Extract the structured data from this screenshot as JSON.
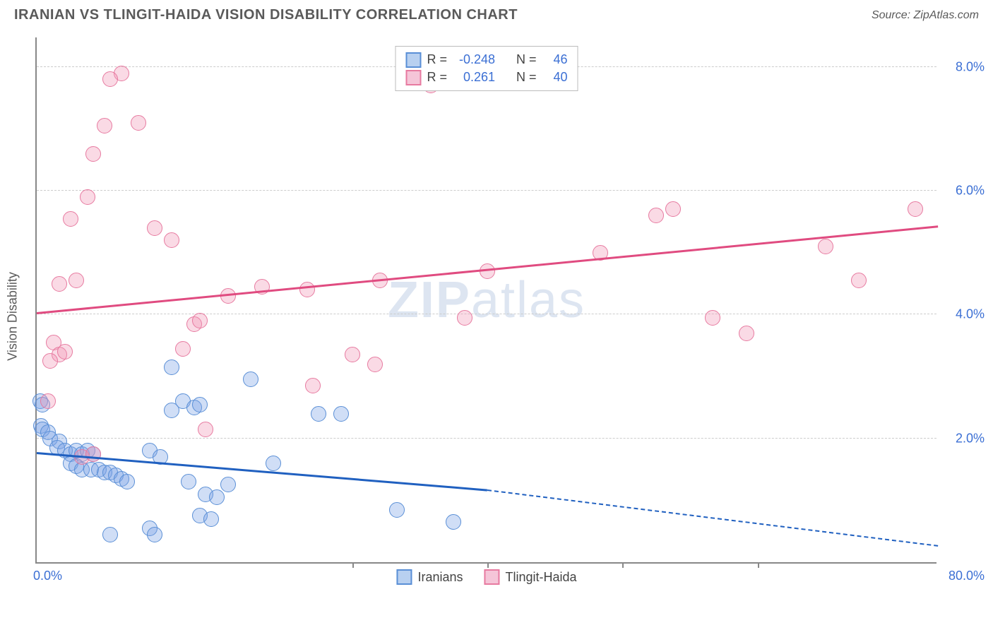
{
  "title": "IRANIAN VS TLINGIT-HAIDA VISION DISABILITY CORRELATION CHART",
  "source": "Source: ZipAtlas.com",
  "watermark_bold": "ZIP",
  "watermark_light": "atlas",
  "ylabel": "Vision Disability",
  "chart": {
    "type": "scatter",
    "xlim": [
      0,
      80
    ],
    "ylim": [
      0,
      8.5
    ],
    "xtick_labels": [
      "0.0%",
      "80.0%"
    ],
    "ytick_values": [
      2.0,
      4.0,
      6.0,
      8.0
    ],
    "ytick_labels": [
      "2.0%",
      "4.0%",
      "6.0%",
      "8.0%"
    ],
    "xtick_marks": [
      28,
      40,
      52,
      64
    ],
    "background_color": "#ffffff",
    "grid_color": "#cccccc",
    "axis_color": "#888888",
    "marker_radius": 11,
    "marker_stroke_width": 1.5,
    "series": [
      {
        "name": "Iranians",
        "color_fill": "rgba(120,160,230,0.35)",
        "color_stroke": "#5a8fd6",
        "swatch_fill": "#b8d0f0",
        "swatch_stroke": "#5a8fd6",
        "R": "-0.248",
        "N": "46",
        "trend": {
          "x0": 0,
          "y0": 1.75,
          "x1": 40,
          "y1": 1.15,
          "x1_dash": 80,
          "y1_dash": 0.25,
          "color": "#2060c0"
        },
        "points": [
          [
            0.3,
            2.6
          ],
          [
            0.5,
            2.55
          ],
          [
            0.4,
            2.2
          ],
          [
            0.5,
            2.15
          ],
          [
            1.0,
            2.1
          ],
          [
            1.2,
            2.0
          ],
          [
            2.0,
            1.95
          ],
          [
            1.8,
            1.85
          ],
          [
            2.5,
            1.8
          ],
          [
            3.0,
            1.75
          ],
          [
            3.5,
            1.8
          ],
          [
            4.0,
            1.75
          ],
          [
            4.5,
            1.8
          ],
          [
            5.0,
            1.75
          ],
          [
            3.0,
            1.6
          ],
          [
            3.5,
            1.55
          ],
          [
            4.0,
            1.5
          ],
          [
            4.8,
            1.5
          ],
          [
            5.5,
            1.5
          ],
          [
            6.0,
            1.45
          ],
          [
            6.5,
            1.45
          ],
          [
            7.0,
            1.4
          ],
          [
            7.5,
            1.35
          ],
          [
            8.0,
            1.3
          ],
          [
            10.0,
            1.8
          ],
          [
            11.0,
            1.7
          ],
          [
            12.0,
            2.45
          ],
          [
            13.0,
            2.6
          ],
          [
            14.0,
            2.5
          ],
          [
            13.5,
            1.3
          ],
          [
            15.0,
            1.1
          ],
          [
            16.0,
            1.05
          ],
          [
            14.5,
            0.75
          ],
          [
            15.5,
            0.7
          ],
          [
            17.0,
            1.25
          ],
          [
            21.0,
            1.6
          ],
          [
            25.0,
            2.4
          ],
          [
            27.0,
            2.4
          ],
          [
            32.0,
            0.85
          ],
          [
            37.0,
            0.65
          ],
          [
            6.5,
            0.45
          ],
          [
            10.0,
            0.55
          ],
          [
            10.5,
            0.45
          ],
          [
            12.0,
            3.15
          ],
          [
            19.0,
            2.95
          ],
          [
            14.5,
            2.55
          ]
        ]
      },
      {
        "name": "Tlingit-Haida",
        "color_fill": "rgba(240,150,180,0.35)",
        "color_stroke": "#e77aa0",
        "swatch_fill": "#f5c5d8",
        "swatch_stroke": "#e77aa0",
        "R": "0.261",
        "N": "40",
        "trend": {
          "x0": 0,
          "y0": 4.0,
          "x1": 80,
          "y1": 5.4,
          "color": "#e04b80"
        },
        "points": [
          [
            1.0,
            2.6
          ],
          [
            1.5,
            3.55
          ],
          [
            2.0,
            3.35
          ],
          [
            2.5,
            3.4
          ],
          [
            2.0,
            4.5
          ],
          [
            3.5,
            4.55
          ],
          [
            3.0,
            5.55
          ],
          [
            4.5,
            5.9
          ],
          [
            5.0,
            6.6
          ],
          [
            6.0,
            7.05
          ],
          [
            7.5,
            7.9
          ],
          [
            9.0,
            7.1
          ],
          [
            6.5,
            7.8
          ],
          [
            10.5,
            5.4
          ],
          [
            12.0,
            5.2
          ],
          [
            13.0,
            3.45
          ],
          [
            14.0,
            3.85
          ],
          [
            14.5,
            3.9
          ],
          [
            17.0,
            4.3
          ],
          [
            15.0,
            2.15
          ],
          [
            20.0,
            4.45
          ],
          [
            24.0,
            4.4
          ],
          [
            24.5,
            2.85
          ],
          [
            30.0,
            3.2
          ],
          [
            35.0,
            7.7
          ],
          [
            30.5,
            4.55
          ],
          [
            38.0,
            3.95
          ],
          [
            40.0,
            4.7
          ],
          [
            50.0,
            5.0
          ],
          [
            55.0,
            5.6
          ],
          [
            56.5,
            5.7
          ],
          [
            60.0,
            3.95
          ],
          [
            63.0,
            3.7
          ],
          [
            70.0,
            5.1
          ],
          [
            73.0,
            4.55
          ],
          [
            78.0,
            5.7
          ],
          [
            4.0,
            1.7
          ],
          [
            5.0,
            1.75
          ],
          [
            28.0,
            3.35
          ],
          [
            1.2,
            3.25
          ]
        ]
      }
    ],
    "legend": {
      "stat_labels": {
        "R": "R =",
        "N": "N ="
      },
      "bottom_items": [
        "Iranians",
        "Tlingit-Haida"
      ]
    }
  }
}
